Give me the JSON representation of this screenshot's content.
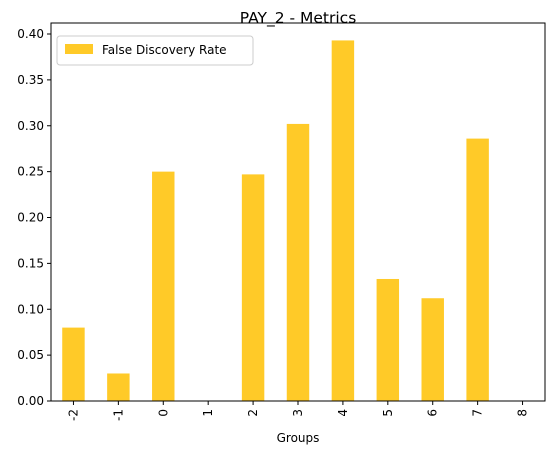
{
  "chart_data": {
    "type": "bar",
    "title": "PAY_2 - Metrics",
    "xlabel": "Groups",
    "ylabel": "",
    "categories": [
      "-2",
      "-1",
      "0",
      "1",
      "2",
      "3",
      "4",
      "5",
      "6",
      "7",
      "8"
    ],
    "series": [
      {
        "name": "False Discovery Rate",
        "values": [
          0.08,
          0.03,
          0.25,
          0.0,
          0.247,
          0.302,
          0.393,
          0.133,
          0.112,
          0.286,
          0.0
        ],
        "color": "#FFCA28"
      }
    ],
    "ylim": [
      0,
      0.412
    ],
    "yticks": [
      "0.00",
      "0.05",
      "0.10",
      "0.15",
      "0.20",
      "0.25",
      "0.30",
      "0.35",
      "0.40"
    ],
    "grid": false,
    "legend_position": "top-left"
  }
}
